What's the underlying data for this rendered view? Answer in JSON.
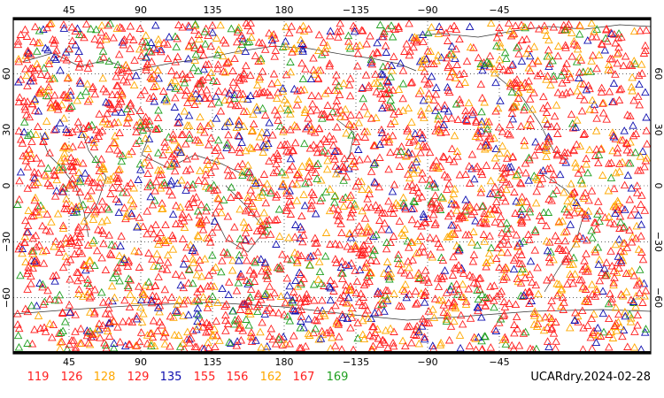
{
  "map": {
    "projection": "equirectangular",
    "lon_range": [
      10,
      410
    ],
    "lat_range": [
      -90,
      90
    ],
    "grid": "dotted",
    "longitude_labels_top": [
      "45",
      "90",
      "135",
      "180",
      "−135",
      "−90",
      "−45"
    ],
    "longitude_labels_bottom": [
      "45",
      "90",
      "135",
      "180",
      "−135",
      "−90",
      "−45"
    ],
    "latitude_labels_left": [
      "60",
      "30",
      "0",
      "−30",
      "−60"
    ],
    "latitude_labels_right": [
      "60",
      "30",
      "0",
      "−30",
      "−60"
    ],
    "marker_symbol": "open-triangle",
    "station_groups": [
      {
        "label": "119",
        "color": "#ff2020"
      },
      {
        "label": "126",
        "color": "#ff2020"
      },
      {
        "label": "128",
        "color": "#ffa800"
      },
      {
        "label": "129",
        "color": "#ff2020"
      },
      {
        "label": "135",
        "color": "#1010b0"
      },
      {
        "label": "155",
        "color": "#ff2020"
      },
      {
        "label": "156",
        "color": "#ff2020"
      },
      {
        "label": "162",
        "color": "#ffa800"
      },
      {
        "label": "167",
        "color": "#ff2020"
      },
      {
        "label": "169",
        "color": "#20a020"
      }
    ]
  },
  "footer": {
    "stamp": "UCARdry.2024-02-28"
  }
}
